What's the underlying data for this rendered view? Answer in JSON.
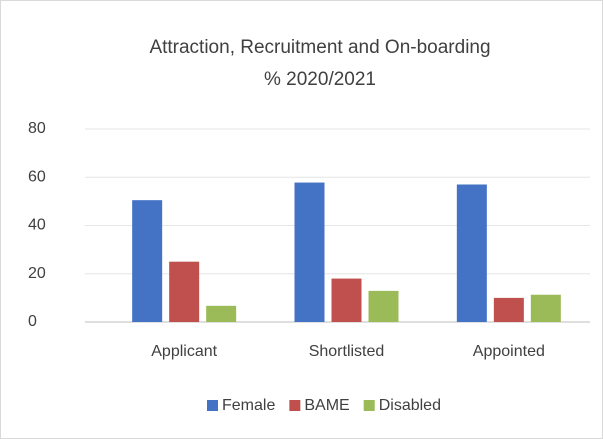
{
  "chart_data": {
    "type": "bar",
    "title": [
      "Attraction, Recruitment and On-boarding",
      "% 2020/2021"
    ],
    "categories": [
      "Applicant",
      "Shortlisted",
      "Appointed"
    ],
    "series": [
      {
        "name": "Female",
        "color": "#4472c4",
        "values": [
          50.5,
          57.8,
          57
        ]
      },
      {
        "name": "BAME",
        "color": "#c0504d",
        "values": [
          25,
          18,
          10
        ]
      },
      {
        "name": "Disabled",
        "color": "#9bbb59",
        "values": [
          6.7,
          12.9,
          11.3
        ]
      }
    ],
    "ylim": [
      0,
      80
    ],
    "yticks": [
      0,
      20,
      40,
      60,
      80
    ],
    "grid": true,
    "legend": "bottom"
  }
}
